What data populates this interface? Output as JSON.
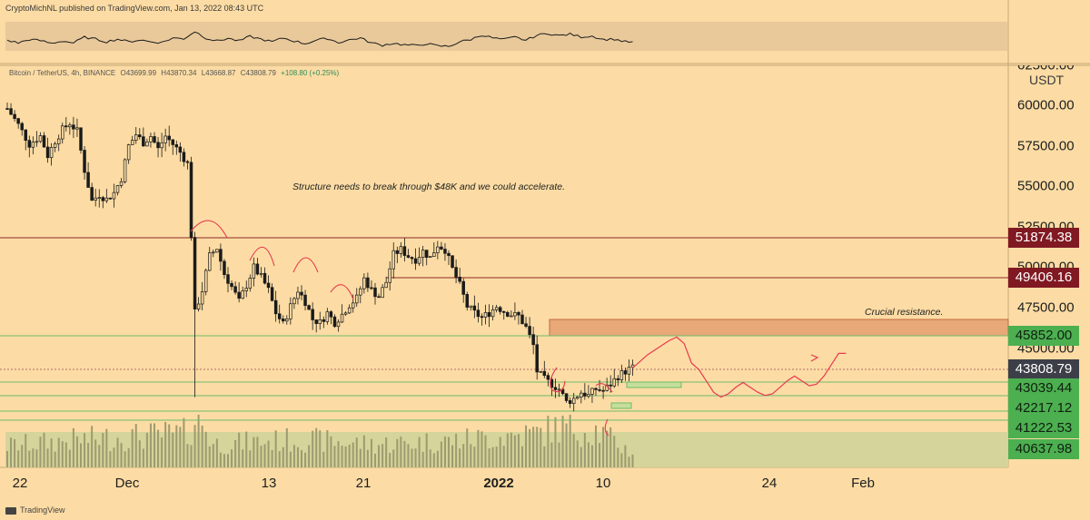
{
  "header": {
    "publisher": "CryptoMichNL published on TradingView.com, Jan 13, 2022 08:43 UTC"
  },
  "ohlc": {
    "symbol": "Bitcoin / TetherUS, 4h, BINANCE",
    "open": "O43699.99",
    "high": "H43870.34",
    "low": "L43668.87",
    "close": "C43808.79",
    "change": "+108.80 (+0.25%)"
  },
  "axis": {
    "currency": "USDT",
    "top_clipped": "62500.00",
    "ticks": [
      "60000.00",
      "57500.00",
      "55000.00",
      "52500.00",
      "50000.00",
      "47500.00",
      "45000.00"
    ]
  },
  "price_levels": [
    {
      "label": "51874.38",
      "value": 51874.38,
      "style": "red"
    },
    {
      "label": "49406.16",
      "value": 49406.16,
      "style": "red"
    },
    {
      "label": "45852.00",
      "value": 45852.0,
      "style": "green"
    },
    {
      "label": "43808.79",
      "value": 43808.79,
      "style": "current"
    },
    {
      "label": "43039.44",
      "value": 43039.44,
      "style": "green"
    },
    {
      "label": "42217.12",
      "value": 42217.12,
      "style": "green"
    },
    {
      "label": "41222.53",
      "value": 41222.53,
      "style": "green"
    },
    {
      "label": "40637.98",
      "value": 40637.98,
      "style": "green"
    }
  ],
  "x_axis": [
    {
      "label": "22",
      "bold": false
    },
    {
      "label": "Dec",
      "bold": false
    },
    {
      "label": "13",
      "bold": false
    },
    {
      "label": "21",
      "bold": false
    },
    {
      "label": "2022",
      "bold": true
    },
    {
      "label": "10",
      "bold": false
    },
    {
      "label": "24",
      "bold": false
    },
    {
      "label": "Feb",
      "bold": false
    }
  ],
  "annotations": {
    "structure": "Structure needs to break through $48K and we could accelerate.",
    "resistance": "Crucial resistance."
  },
  "footer": {
    "brand": "TradingView"
  },
  "colors": {
    "background": "#fcdca4",
    "candle": "#1a1a1a",
    "resistance_zone": "#e8a878",
    "volume_zone": "#d5d49a",
    "red_line": "#8a2a2a",
    "green_line": "#6dbb6d",
    "projection": "#e8394f"
  },
  "chart_data": {
    "type": "candlestick",
    "title": "Bitcoin / TetherUS, 4h, BINANCE",
    "ylabel": "USDT",
    "ylim": [
      39800,
      63500
    ],
    "x": [
      "22",
      "Dec",
      "13",
      "21",
      "2022",
      "10",
      "24",
      "Feb"
    ],
    "close_path": [
      [
        0,
        59800
      ],
      [
        3,
        58800
      ],
      [
        6,
        57600
      ],
      [
        9,
        58100
      ],
      [
        11,
        56900
      ],
      [
        13,
        57800
      ],
      [
        15,
        58500
      ],
      [
        17,
        58900
      ],
      [
        19,
        58400
      ],
      [
        21,
        56000
      ],
      [
        23,
        54100
      ],
      [
        25,
        54500
      ],
      [
        27,
        54200
      ],
      [
        29,
        54600
      ],
      [
        31,
        55500
      ],
      [
        33,
        57500
      ],
      [
        35,
        58200
      ],
      [
        37,
        57700
      ],
      [
        39,
        58100
      ],
      [
        41,
        57300
      ],
      [
        43,
        58100
      ],
      [
        45,
        57600
      ],
      [
        47,
        57100
      ],
      [
        49,
        56400
      ],
      [
        50,
        52000
      ],
      [
        51,
        47200
      ],
      [
        53,
        48600
      ],
      [
        55,
        50700
      ],
      [
        57,
        51200
      ],
      [
        59,
        49600
      ],
      [
        61,
        48800
      ],
      [
        63,
        47900
      ],
      [
        65,
        48900
      ],
      [
        67,
        50000
      ],
      [
        69,
        49400
      ],
      [
        71,
        48600
      ],
      [
        73,
        47200
      ],
      [
        75,
        46500
      ],
      [
        77,
        47600
      ],
      [
        79,
        48600
      ],
      [
        81,
        47900
      ],
      [
        83,
        46800
      ],
      [
        85,
        46600
      ],
      [
        87,
        47200
      ],
      [
        89,
        46600
      ],
      [
        91,
        47100
      ],
      [
        93,
        47700
      ],
      [
        95,
        48100
      ],
      [
        97,
        49300
      ],
      [
        99,
        48600
      ],
      [
        101,
        48200
      ],
      [
        103,
        49100
      ],
      [
        105,
        50800
      ],
      [
        107,
        51100
      ],
      [
        109,
        50700
      ],
      [
        111,
        50500
      ],
      [
        113,
        51000
      ],
      [
        115,
        50600
      ],
      [
        117,
        51400
      ],
      [
        119,
        51100
      ],
      [
        121,
        49900
      ],
      [
        123,
        48900
      ],
      [
        125,
        47600
      ],
      [
        127,
        47200
      ],
      [
        129,
        46900
      ],
      [
        131,
        47200
      ],
      [
        133,
        47600
      ],
      [
        135,
        47300
      ],
      [
        137,
        47100
      ],
      [
        139,
        47000
      ],
      [
        141,
        46300
      ],
      [
        143,
        45200
      ],
      [
        144,
        43600
      ],
      [
        146,
        43100
      ],
      [
        148,
        42800
      ],
      [
        150,
        42500
      ],
      [
        152,
        41700
      ],
      [
        154,
        41900
      ],
      [
        156,
        42300
      ],
      [
        158,
        42100
      ],
      [
        160,
        42500
      ],
      [
        162,
        42400
      ],
      [
        164,
        42800
      ],
      [
        166,
        43300
      ],
      [
        168,
        43600
      ],
      [
        170,
        43809
      ]
    ],
    "volume_path": [
      [
        0,
        28
      ],
      [
        20,
        36
      ],
      [
        49,
        44
      ],
      [
        52,
        70
      ],
      [
        56,
        30
      ],
      [
        80,
        36
      ],
      [
        100,
        30
      ],
      [
        120,
        34
      ],
      [
        144,
        44
      ],
      [
        150,
        52
      ],
      [
        160,
        48
      ],
      [
        170,
        18
      ]
    ],
    "oscillator_path": [
      [
        0,
        42
      ],
      [
        3,
        35
      ],
      [
        6,
        44
      ],
      [
        9,
        41
      ],
      [
        12,
        34
      ],
      [
        15,
        40
      ],
      [
        18,
        35
      ],
      [
        21,
        50
      ],
      [
        24,
        45
      ],
      [
        27,
        38
      ],
      [
        30,
        45
      ],
      [
        33,
        38
      ],
      [
        36,
        43
      ],
      [
        39,
        38
      ],
      [
        42,
        36
      ],
      [
        45,
        48
      ],
      [
        48,
        46
      ],
      [
        51,
        65
      ],
      [
        54,
        48
      ],
      [
        57,
        40
      ],
      [
        60,
        47
      ],
      [
        63,
        40
      ],
      [
        66,
        52
      ],
      [
        69,
        45
      ],
      [
        72,
        38
      ],
      [
        75,
        48
      ],
      [
        78,
        40
      ],
      [
        81,
        33
      ],
      [
        84,
        42
      ],
      [
        87,
        47
      ],
      [
        90,
        36
      ],
      [
        93,
        43
      ],
      [
        96,
        48
      ],
      [
        99,
        35
      ],
      [
        102,
        29
      ],
      [
        105,
        34
      ],
      [
        108,
        30
      ],
      [
        111,
        28
      ],
      [
        114,
        33
      ],
      [
        117,
        27
      ],
      [
        120,
        26
      ],
      [
        123,
        38
      ],
      [
        126,
        44
      ],
      [
        129,
        56
      ],
      [
        132,
        48
      ],
      [
        135,
        44
      ],
      [
        138,
        50
      ],
      [
        141,
        42
      ],
      [
        144,
        55
      ],
      [
        147,
        60
      ],
      [
        150,
        54
      ],
      [
        153,
        58
      ],
      [
        156,
        51
      ],
      [
        159,
        53
      ],
      [
        162,
        44
      ],
      [
        165,
        45
      ],
      [
        168,
        38
      ],
      [
        170,
        37
      ]
    ],
    "projection_path": [
      [
        170,
        43800
      ],
      [
        172,
        44200
      ],
      [
        174,
        44600
      ],
      [
        176,
        44900
      ],
      [
        178,
        45200
      ],
      [
        180,
        45500
      ],
      [
        182,
        45700
      ],
      [
        184,
        45300
      ],
      [
        186,
        44100
      ],
      [
        188,
        43700
      ],
      [
        190,
        43000
      ],
      [
        192,
        42300
      ],
      [
        194,
        42000
      ],
      [
        196,
        42200
      ],
      [
        198,
        42600
      ],
      [
        200,
        42900
      ],
      [
        202,
        42600
      ],
      [
        204,
        42300
      ],
      [
        206,
        42100
      ],
      [
        208,
        42200
      ],
      [
        210,
        42600
      ],
      [
        212,
        43000
      ],
      [
        214,
        43300
      ],
      [
        216,
        43000
      ],
      [
        218,
        42700
      ],
      [
        220,
        42800
      ],
      [
        222,
        43300
      ],
      [
        224,
        44000
      ],
      [
        226,
        44700
      ],
      [
        228,
        44700
      ]
    ]
  }
}
